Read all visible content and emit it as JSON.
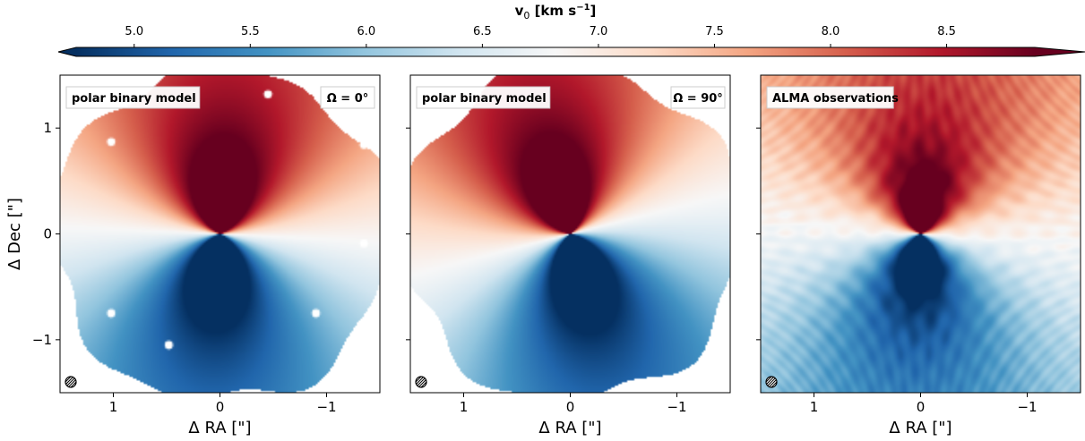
{
  "chart_data": {
    "type": "heatmap",
    "colorbar": {
      "label_main": "v",
      "label_sub": "0",
      "label_unit": " [km s",
      "label_exp": "−1",
      "label_close": "]",
      "min": 4.75,
      "max": 8.88,
      "ticks": [
        5.0,
        5.5,
        6.0,
        6.5,
        7.0,
        7.5,
        8.0,
        8.5
      ],
      "tick_labels": [
        "5.0",
        "5.5",
        "6.0",
        "6.5",
        "7.0",
        "7.5",
        "8.0",
        "8.5"
      ],
      "colormap": "RdBu_r",
      "extend": "both",
      "colors": [
        "#053061",
        "#2166ac",
        "#4393c3",
        "#92c5de",
        "#d1e5f0",
        "#f7f7f7",
        "#fddbc7",
        "#f4a582",
        "#d6604d",
        "#b2182b",
        "#67001f"
      ]
    },
    "panels": [
      {
        "label": "polar binary model",
        "annotation": "Ω = 0°",
        "model": true,
        "masked_edges": true
      },
      {
        "label": "polar binary model",
        "annotation": "Ω = 90°",
        "model": true,
        "masked_edges": true
      },
      {
        "label": "ALMA observations",
        "annotation": "",
        "model": false,
        "masked_edges": false
      }
    ],
    "x_axis": {
      "label": "Δ RA [\"]",
      "range": [
        1.5,
        -1.5
      ],
      "ticks": [
        1,
        0,
        -1
      ],
      "tick_labels": [
        "1",
        "0",
        "−1"
      ]
    },
    "y_axis": {
      "label": "Δ Dec [\"]",
      "range": [
        -1.5,
        1.5
      ],
      "ticks": [
        1,
        0,
        -1
      ],
      "tick_labels": [
        "1",
        "0",
        "−1"
      ]
    },
    "systemic_velocity": 6.82,
    "beam": {
      "position": "bottom-left",
      "hatched": true
    }
  }
}
